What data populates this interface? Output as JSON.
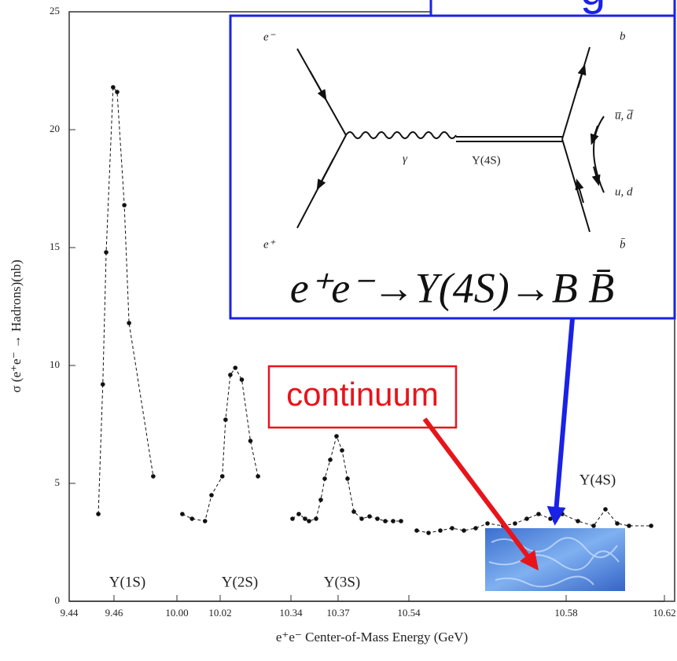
{
  "chart_data": {
    "type": "scatter",
    "xlabel": "e⁺e⁻ Center-of-Mass Energy (GeV)",
    "ylabel": "σ (e⁺e⁻ → Hadrons)(nb)",
    "xlim": [
      9.44,
      10.62
    ],
    "xticks": [
      9.44,
      9.46,
      {
        "value": 10.0,
        "label": "10.00"
      },
      10.02,
      10.34,
      10.37,
      10.54,
      10.58,
      10.62
    ],
    "ylim": [
      0,
      25
    ],
    "yticks": [
      0,
      5,
      10,
      15,
      20,
      25
    ],
    "line_style": "dashed",
    "series": [
      {
        "color": "#111111",
        "x": [
          9.453,
          9.455,
          9.4565,
          9.4596,
          9.4614,
          9.4646,
          9.4667,
          9.4775
        ],
        "values": [
          3.7,
          9.2,
          14.8,
          21.8,
          21.6,
          16.8,
          11.8,
          5.3
        ]
      },
      {
        "color": "#111111",
        "x": [
          10.0025,
          10.007,
          10.013,
          10.016,
          10.021,
          10.0225,
          10.0247,
          10.027,
          10.03,
          10.034,
          10.0375
        ],
        "values": [
          3.7,
          3.5,
          3.4,
          4.5,
          5.3,
          7.7,
          9.6,
          9.9,
          9.4,
          6.8,
          5.3
        ]
      },
      {
        "color": "#111111",
        "x": [
          10.341,
          10.345,
          10.349,
          10.3515,
          10.356,
          10.359,
          10.3615,
          10.365,
          10.369,
          10.3725,
          10.376,
          10.38,
          10.385,
          10.39,
          10.395,
          10.4,
          10.405,
          10.41
        ],
        "values": [
          3.5,
          3.7,
          3.5,
          3.4,
          3.5,
          4.3,
          5.2,
          6.0,
          7.0,
          6.4,
          5.2,
          3.8,
          3.5,
          3.6,
          3.5,
          3.4,
          3.4,
          3.4
        ]
      },
      {
        "color": "#111111",
        "x": [
          10.542,
          10.545,
          10.548,
          10.551,
          10.554,
          10.557,
          10.56,
          10.564,
          10.567,
          10.57,
          10.573,
          10.576,
          10.579,
          10.5848,
          10.5912,
          10.596,
          10.6008,
          10.6056,
          10.6146
        ],
        "values": [
          3.0,
          2.9,
          3.0,
          3.1,
          3.0,
          3.1,
          3.3,
          3.2,
          3.3,
          3.5,
          3.7,
          3.5,
          3.7,
          3.4,
          3.2,
          3.9,
          3.3,
          3.2,
          3.2
        ]
      }
    ],
    "annotations": [
      "Υ(1S)",
      "Υ(2S)",
      "Υ(3S)",
      "Υ(4S)"
    ]
  },
  "overlay": {
    "tag_fragment": "g",
    "diagram": {
      "e_minus": "e⁻",
      "e_plus": "e⁺",
      "photon": "γ",
      "resonance": "Υ(4S)",
      "b": "b",
      "anti_ud": "u̅, d̅",
      "ud": "u, d",
      "anti_b": "b̄"
    },
    "equation": "e⁺e⁻→Υ(4S)→B B̄",
    "continuum": "continuum"
  }
}
